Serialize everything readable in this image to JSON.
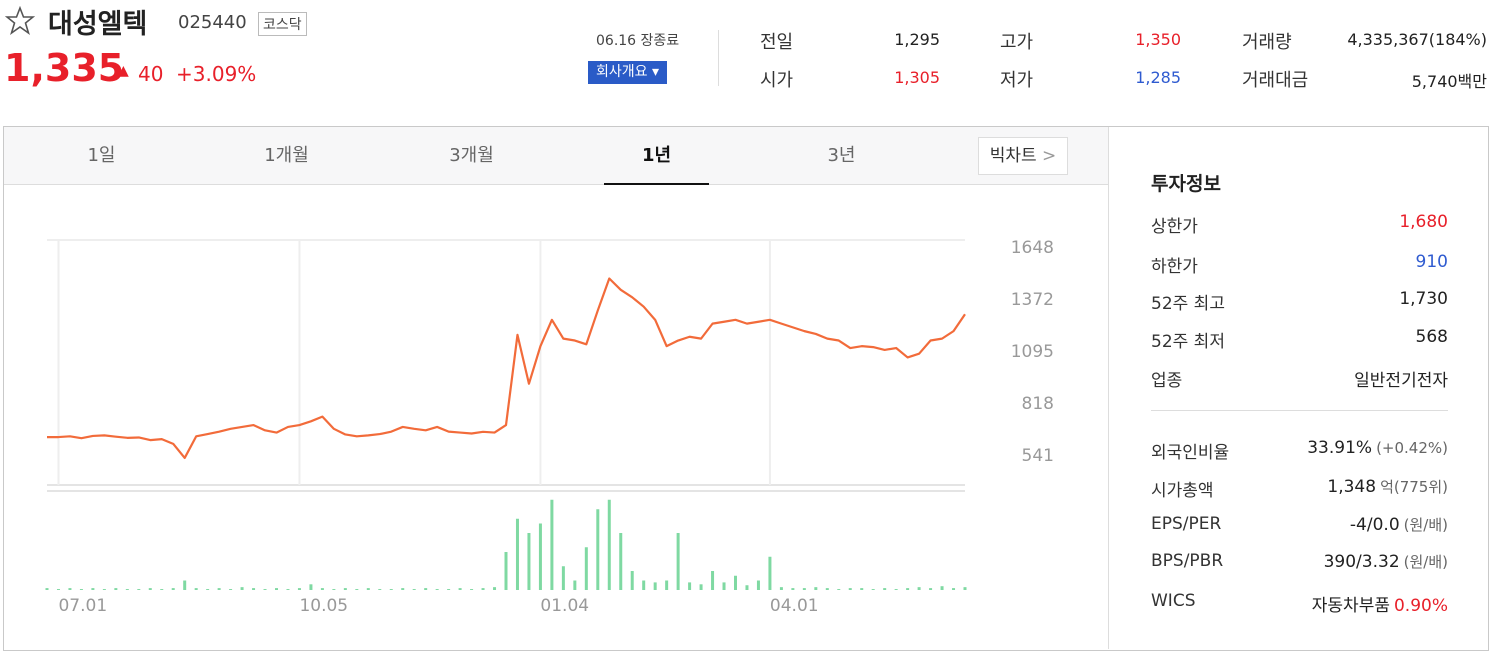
{
  "header": {
    "name": "대성엘텍",
    "code": "025440",
    "market": "코스닥",
    "price": "1,335",
    "change": "40",
    "change_rate": "+3.09%",
    "status": "06.16 장종료",
    "company_button": "회사개요"
  },
  "summary": [
    [
      {
        "label": "전일",
        "value": "1,295"
      },
      {
        "label": "고가",
        "value": "1,350"
      },
      {
        "label": "거래량",
        "value": "4,335,367(184%)"
      }
    ],
    [
      {
        "label": "시가",
        "value": "1,305"
      },
      {
        "label": "저가",
        "value": "1,285"
      },
      {
        "label": "거래대금",
        "value": "5,740백만"
      }
    ]
  ],
  "tabs": [
    "1일",
    "1개월",
    "3개월",
    "1년",
    "3년"
  ],
  "bigchart_button": "빅차트",
  "info": {
    "title": "투자정보",
    "rows": [
      {
        "label": "상한가",
        "value": "1,680"
      },
      {
        "label": "하한가",
        "value": "910"
      },
      {
        "label": "52주 최고",
        "value": "1,730"
      },
      {
        "label": "52주 최저",
        "value": "568"
      },
      {
        "label": "업종",
        "value": "일반전기전자"
      },
      {
        "label": "외국인비율",
        "value": "33.91%",
        "note": "(+0.42%)"
      },
      {
        "label": "시가총액",
        "value": "1,348",
        "note": "억(775위)"
      },
      {
        "label": "EPS/PER",
        "value": "-4/0.0",
        "note": "(원/배)"
      },
      {
        "label": "BPS/PBR",
        "value": "390/3.32",
        "note": "(원/배)"
      },
      {
        "label": "WICS",
        "value": "자동차부품",
        "note": "0.90%"
      }
    ]
  },
  "chart_data": {
    "type": "line",
    "x": [
      null,
      "07.01",
      null,
      null,
      null,
      null,
      null,
      null,
      null,
      null,
      null,
      null,
      null,
      null,
      null,
      null,
      null,
      null,
      null,
      null,
      null,
      null,
      "10.05",
      null,
      null,
      null,
      null,
      null,
      null,
      null,
      null,
      null,
      null,
      null,
      null,
      null,
      null,
      null,
      null,
      null,
      null,
      null,
      null,
      "01.04",
      null,
      null,
      null,
      null,
      null,
      null,
      null,
      null,
      null,
      null,
      null,
      null,
      null,
      null,
      null,
      null,
      null,
      null,
      null,
      "04.01",
      null,
      null,
      null,
      null,
      null,
      null,
      null,
      null,
      null,
      null,
      null,
      null,
      null,
      null,
      null,
      null,
      null
    ],
    "ylim": [
      381,
      1685
    ],
    "yticks": [
      541,
      818,
      1095,
      1372,
      1648
    ],
    "y2lim": [
      0,
      100
    ],
    "series": [
      {
        "color": "#f26b3a",
        "values": [
          636,
          636,
          640,
          630,
          642,
          645,
          638,
          632,
          634,
          620,
          625,
          600,
          525,
          640,
          652,
          665,
          680,
          690,
          700,
          672,
          660,
          690,
          700,
          720,
          745,
          680,
          650,
          640,
          645,
          652,
          665,
          690,
          680,
          672,
          690,
          665,
          660,
          655,
          664,
          660,
          700,
          1180,
          920,
          1120,
          1260,
          1160,
          1150,
          1130,
          1310,
          1480,
          1420,
          1380,
          1330,
          1260,
          1120,
          1150,
          1170,
          1160,
          1240,
          1250,
          1260,
          1240,
          1250,
          1260,
          1240,
          1220,
          1200,
          1185,
          1160,
          1150,
          1110,
          1120,
          1115,
          1100,
          1110,
          1060,
          1080,
          1150,
          1160,
          1200,
          1290
        ]
      },
      {
        "type": "bar",
        "axis": "y2",
        "color": "#7fd9a2",
        "values": [
          2,
          1,
          2,
          1,
          2,
          1,
          2,
          1,
          1,
          2,
          1,
          2,
          10,
          2,
          1,
          2,
          1,
          3,
          2,
          1,
          2,
          1,
          2,
          6,
          2,
          1,
          2,
          1,
          2,
          1,
          1,
          2,
          1,
          2,
          1,
          1,
          2,
          1,
          2,
          3,
          40,
          75,
          60,
          70,
          95,
          25,
          10,
          45,
          85,
          95,
          60,
          20,
          10,
          8,
          10,
          60,
          8,
          6,
          20,
          8,
          15,
          5,
          10,
          35,
          3,
          2,
          2,
          3,
          2,
          1,
          2,
          2,
          1,
          2,
          1,
          2,
          3,
          2,
          4,
          2,
          3
        ]
      }
    ]
  }
}
